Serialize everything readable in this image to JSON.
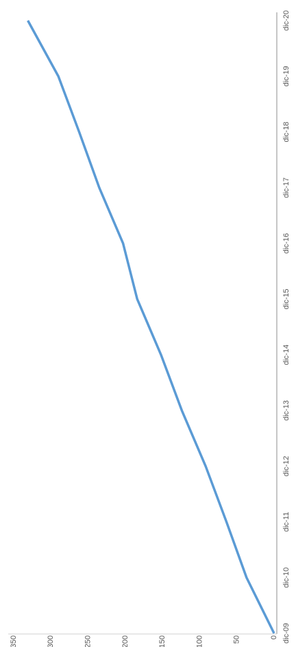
{
  "chart_data": {
    "type": "line",
    "x": [
      "dic-09",
      "dic-10",
      "dic-11",
      "dic-12",
      "dic-13",
      "dic-14",
      "dic-15",
      "dic-16",
      "dic-17",
      "dic-18",
      "dic-19",
      "dic-20"
    ],
    "series": [
      {
        "color": "#5b9bd5",
        "values": [
          0,
          37,
          64,
          92,
          124,
          152,
          184,
          203,
          235,
          262,
          290,
          331
        ]
      }
    ],
    "ylim": [
      0,
      350
    ],
    "yticks": [
      0,
      50,
      100,
      150,
      200,
      250,
      300,
      350
    ],
    "grid": false
  }
}
